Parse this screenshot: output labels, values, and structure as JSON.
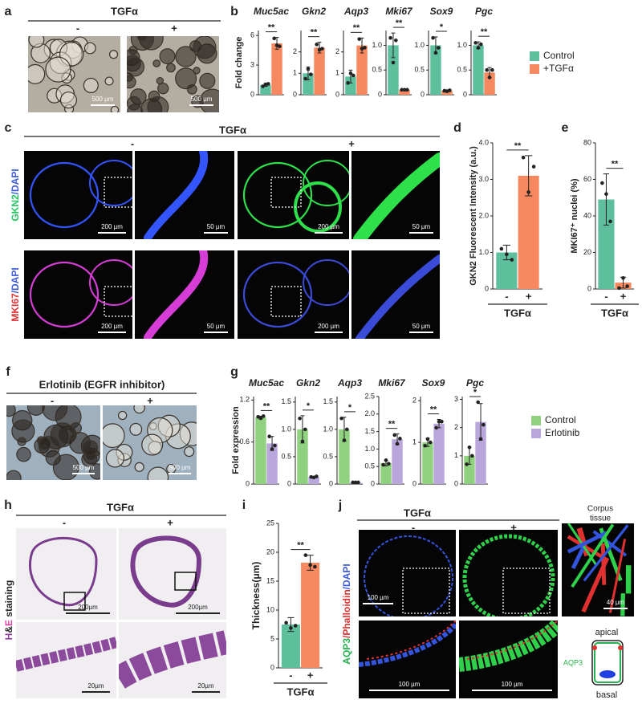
{
  "panel_labels": [
    "a",
    "b",
    "c",
    "d",
    "e",
    "f",
    "g",
    "h",
    "i",
    "j"
  ],
  "panel_a": {
    "title": "TGFα",
    "conditions": [
      "-",
      "+"
    ],
    "scale_bars": [
      "500 µm",
      "500 µm"
    ]
  },
  "panel_c": {
    "title": "TGFα",
    "conditions": [
      "-",
      "+"
    ],
    "rows": [
      {
        "stain": [
          {
            "text": "GKN2",
            "color": "#22c55e"
          },
          {
            "text": "/DAPI",
            "color": "#3b5bdb"
          }
        ],
        "scale_bars": [
          "200 µm",
          "50 µm",
          "200 µm",
          "50 µm"
        ]
      },
      {
        "stain": [
          {
            "text": "MKI67",
            "color": "#e0302f"
          },
          {
            "text": "/DAPI",
            "color": "#3b5bdb"
          }
        ],
        "scale_bars": [
          "200 µm",
          "50 µm",
          "200 µm",
          "50 µm"
        ]
      }
    ]
  },
  "panel_f": {
    "title": "Erlotinib (EGFR inhibitor)",
    "conditions": [
      "-",
      "+"
    ],
    "scale_bars": [
      "500 µm",
      "500 µm"
    ]
  },
  "panel_h": {
    "title": "TGFα",
    "conditions": [
      "-",
      "+"
    ],
    "stain": [
      {
        "text": "H",
        "color": "#8e3fa0"
      },
      {
        "text": "&",
        "color": "#222222"
      },
      {
        "text": "E",
        "color": "#e040a0"
      },
      {
        "text": " staining",
        "color": "#222222"
      }
    ],
    "scale_bars": [
      "200µm",
      "200µm",
      "20µm",
      "20µm"
    ]
  },
  "panel_j": {
    "title": "TGFα",
    "conditions": [
      "-",
      "+"
    ],
    "stain": [
      {
        "text": "AQP3",
        "color": "#22b14c"
      },
      {
        "text": "/Phalloidin",
        "color": "#e0302f"
      },
      {
        "text": "/DAPI",
        "color": "#3b5bdb"
      }
    ],
    "scale_bars": [
      "100 µm",
      "100 µm",
      "100 µm"
    ],
    "inset_title": [
      "Corpus",
      "tissue"
    ],
    "inset_scale_bar": "40 µm",
    "diagram": {
      "top": "apical",
      "side": "AQP3",
      "bottom": "basal"
    }
  },
  "chart_data": [
    {
      "type": "bar",
      "y_label": "Fold change",
      "legend": [
        {
          "name": "Control",
          "color": "#5dbf9c"
        },
        {
          "name": "+TGFα",
          "color": "#f6895f"
        }
      ],
      "panels": [
        {
          "title": "Muc5ac",
          "ylim": [
            0,
            6.5
          ],
          "yticks": [
            0,
            3,
            6
          ],
          "values": [
            1.0,
            5.2
          ],
          "errors": [
            0.15,
            0.6
          ],
          "points": [
            [
              0.85,
              1.05,
              1.1
            ],
            [
              5.7,
              5.0,
              4.9
            ]
          ],
          "significance": "**"
        },
        {
          "title": "Gkn2",
          "ylim": [
            0,
            3
          ],
          "yticks": [
            0,
            1,
            2
          ],
          "values": [
            1.0,
            2.2
          ],
          "errors": [
            0.3,
            0.25
          ],
          "points": [
            [
              0.75,
              1.2,
              0.95
            ],
            [
              2.35,
              2.1,
              2.15
            ]
          ],
          "significance": "**"
        },
        {
          "title": "Aqp3",
          "ylim": [
            0,
            3
          ],
          "yticks": [
            0,
            1,
            2
          ],
          "values": [
            0.85,
            2.3
          ],
          "errors": [
            0.3,
            0.35
          ],
          "points": [
            [
              0.55,
              1.0,
              0.9
            ],
            [
              2.6,
              2.15,
              2.2
            ]
          ],
          "significance": "**"
        },
        {
          "title": "Mki67",
          "ylim": [
            0,
            1.3
          ],
          "yticks": [
            0,
            0.5,
            {
              "value": 1,
              "label": "1.0"
            }
          ],
          "values": [
            1.0,
            0.1
          ],
          "errors": [
            0.25,
            0.01
          ],
          "points": [
            [
              1.15,
              0.65,
              1.1
            ],
            [
              0.1,
              0.1,
              0.1
            ]
          ],
          "significance": "**"
        },
        {
          "title": "Sox9",
          "ylim": [
            0,
            1.3
          ],
          "yticks": [
            0,
            0.5,
            {
              "value": 1,
              "label": "1.0"
            }
          ],
          "values": [
            1.0,
            0.08
          ],
          "errors": [
            0.17,
            0.02
          ],
          "points": [
            [
              1.15,
              0.85,
              0.95
            ],
            [
              0.08,
              0.07,
              0.09
            ]
          ],
          "significance": "*"
        },
        {
          "title": "Pgc",
          "ylim": [
            0,
            1.3
          ],
          "yticks": [
            0,
            0.5,
            {
              "value": 1,
              "label": "1.0"
            }
          ],
          "values": [
            1.0,
            0.45
          ],
          "errors": [
            0.07,
            0.1
          ],
          "points": [
            [
              1.05,
              0.95,
              1.02
            ],
            [
              0.5,
              0.35,
              0.5
            ]
          ],
          "significance": "**"
        }
      ]
    },
    {
      "type": "bar",
      "y_label": "GKN2 Fluorescent Intensity (a.u.)",
      "x_label": "TGFα",
      "categories": [
        "-",
        "+"
      ],
      "colors": [
        "#5dbf9c",
        "#f6895f"
      ],
      "ylim": [
        0,
        4
      ],
      "yticks": [
        0,
        {
          "value": 1,
          "label": "1.0"
        },
        {
          "value": 2,
          "label": "2.0"
        },
        {
          "value": 3,
          "label": "3.0"
        },
        {
          "value": 4,
          "label": "4.0"
        }
      ],
      "values": [
        1.0,
        3.1
      ],
      "errors": [
        0.2,
        0.55
      ],
      "points": [
        [
          1.1,
          0.95,
          0.8
        ],
        [
          3.6,
          2.65,
          3.35
        ]
      ],
      "significance": "**"
    },
    {
      "type": "bar",
      "y_label": "MKI67⁺ nuclei (%)",
      "x_label": "TGFα",
      "categories": [
        "-",
        "+"
      ],
      "colors": [
        "#5dbf9c",
        "#f6895f"
      ],
      "ylim": [
        0,
        80
      ],
      "yticks": [
        0,
        20,
        40,
        60,
        80
      ],
      "values": [
        49,
        3.5
      ],
      "errors": [
        14,
        3
      ],
      "points": [
        [
          58,
          52,
          37
        ],
        [
          0.5,
          6,
          1.5
        ]
      ],
      "significance": "**"
    },
    {
      "type": "bar",
      "y_label": "Fold expression",
      "legend": [
        {
          "name": "Control",
          "color": "#8fd17e"
        },
        {
          "name": "Erlotinib",
          "color": "#b9a7db"
        }
      ],
      "panels": [
        {
          "title": "Muc5ac",
          "ylim": [
            0,
            1.25
          ],
          "yticks": [
            0,
            0.6,
            1.2
          ],
          "values": [
            0.95,
            0.58
          ],
          "errors": [
            0.02,
            0.1
          ],
          "points": [
            [
              0.96,
              0.94,
              0.97
            ],
            [
              0.68,
              0.5,
              0.55
            ]
          ],
          "significance": "**"
        },
        {
          "title": "Gkn2",
          "ylim": [
            0,
            1.6
          ],
          "yticks": [
            0,
            0.5,
            {
              "value": 1,
              "label": "1.0"
            },
            1.5
          ],
          "values": [
            1.0,
            0.13
          ],
          "errors": [
            0.25,
            0.01
          ],
          "points": [
            [
              1.2,
              0.78,
              1.0
            ],
            [
              0.13,
              0.12,
              0.14
            ]
          ],
          "significance": "*"
        },
        {
          "title": "Aqp3",
          "ylim": [
            0,
            1.6
          ],
          "yticks": [
            0,
            0.5,
            {
              "value": 1,
              "label": "1.0"
            },
            1.5
          ],
          "values": [
            1.0,
            0.03
          ],
          "errors": [
            0.22,
            0.01
          ],
          "points": [
            [
              1.2,
              0.8,
              1.0
            ],
            [
              0.03,
              0.03,
              0.03
            ]
          ],
          "significance": "*"
        },
        {
          "title": "Mki67",
          "ylim": [
            0,
            2.5
          ],
          "yticks": [
            0,
            0.5,
            {
              "value": 1,
              "label": "1.0"
            },
            1.5,
            {
              "value": 2,
              "label": "2.0"
            },
            2.5
          ],
          "values": [
            0.6,
            1.28
          ],
          "errors": [
            0.08,
            0.15
          ],
          "points": [
            [
              0.55,
              0.68,
              0.58
            ],
            [
              1.4,
              1.15,
              1.3
            ]
          ],
          "significance": "**"
        },
        {
          "title": "Sox9",
          "ylim": [
            0,
            2.1
          ],
          "yticks": [
            0,
            1,
            2
          ],
          "values": [
            1.0,
            1.45
          ],
          "errors": [
            0.1,
            0.1
          ],
          "points": [
            [
              0.92,
              1.08,
              1.0
            ],
            [
              1.35,
              1.5,
              1.5
            ]
          ],
          "significance": "**"
        },
        {
          "title": "Pgc",
          "ylim": [
            0,
            3.1
          ],
          "yticks": [
            0,
            1,
            2,
            3
          ],
          "values": [
            1.0,
            2.2
          ],
          "errors": [
            0.3,
            0.65
          ],
          "points": [
            [
              0.7,
              1.3,
              1.0
            ],
            [
              2.9,
              1.6,
              2.1
            ]
          ],
          "significance": "*"
        }
      ]
    },
    {
      "type": "bar",
      "y_label": "Thickness(μm)",
      "x_label": "TGFα",
      "categories": [
        "-",
        "+"
      ],
      "colors": [
        "#5dbf9c",
        "#f6895f"
      ],
      "ylim": [
        0,
        25
      ],
      "yticks": [
        0,
        5,
        10,
        15,
        20,
        25
      ],
      "values": [
        7.5,
        18.2
      ],
      "errors": [
        1.2,
        1.3
      ],
      "points": [
        [
          7.8,
          6.9,
          7.3
        ],
        [
          19.5,
          17.8,
          17.5
        ]
      ],
      "significance": "**"
    }
  ]
}
